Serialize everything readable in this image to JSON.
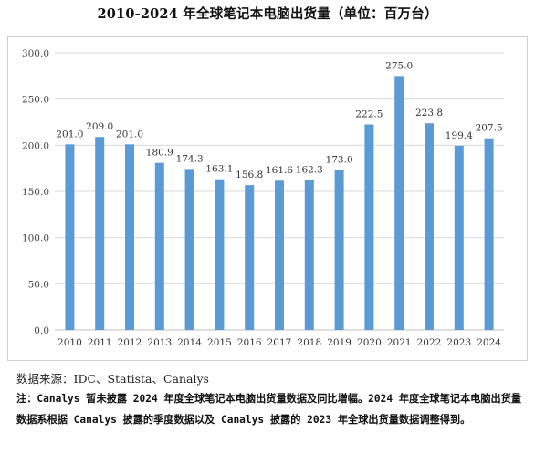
{
  "chart_data": {
    "type": "bar",
    "title": "2010-2024 年全球笔记本电脑出货量（单位：百万台）",
    "categories": [
      "2010",
      "2011",
      "2012",
      "2013",
      "2014",
      "2015",
      "2016",
      "2017",
      "2018",
      "2019",
      "2020",
      "2021",
      "2022",
      "2023",
      "2024"
    ],
    "values": [
      201.0,
      209.0,
      201.0,
      180.9,
      174.3,
      163.1,
      156.8,
      161.6,
      162.3,
      173.0,
      222.5,
      275.0,
      223.8,
      199.4,
      207.5
    ],
    "value_labels": [
      "201.0",
      "209.0",
      "201.0",
      "180.9",
      "174.3",
      "163.1",
      "156.8",
      "161.6",
      "162.3",
      "173.0",
      "222.5",
      "275.0",
      "223.8",
      "199.4",
      "207.5"
    ],
    "y_ticks": [
      "0.0",
      "50.0",
      "100.0",
      "150.0",
      "200.0",
      "250.0",
      "300.0"
    ],
    "ylim": [
      0,
      300
    ],
    "grid": true,
    "bar_color": "#5b9bd5",
    "xlabel": "",
    "ylabel": ""
  },
  "source_text": "数据来源：IDC、Statista、Canalys",
  "note_text": "注：Canalys 暂未披露 2024 年度全球笔记本电脑出货量数据及同比增幅。2024 年度全球笔记本电脑出货量数据系根据 Canalys 披露的季度数据以及 Canalys 披露的 2023 年全球出货量数据调整得到。"
}
